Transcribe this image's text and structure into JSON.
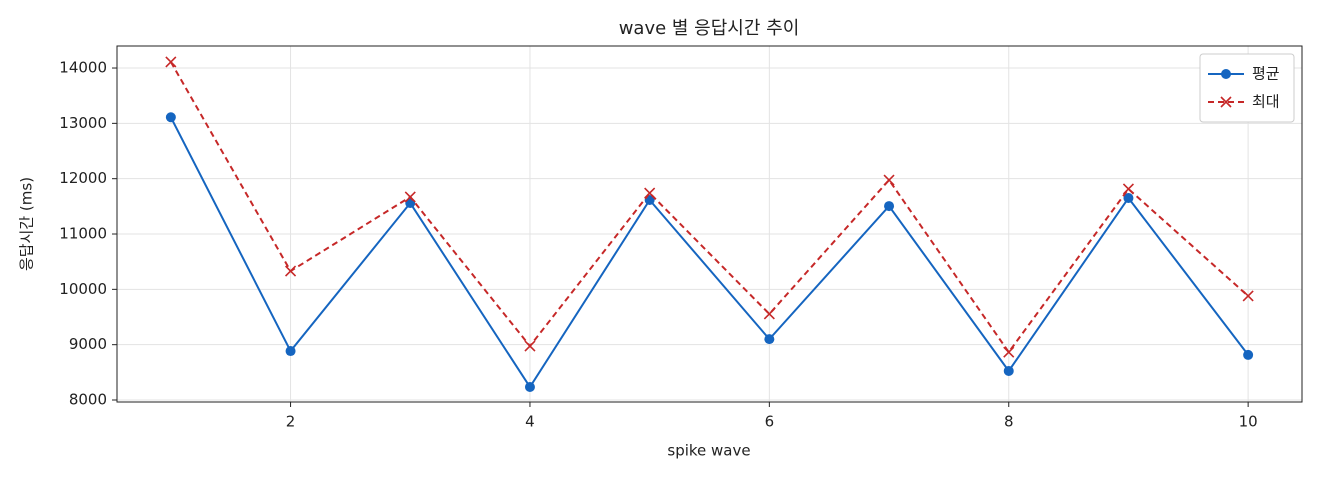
{
  "chart_data": {
    "type": "line",
    "title": "wave 별 응답시간 추이",
    "x_label": "spike wave",
    "y_label": "응답시간 (ms)",
    "x": [
      1,
      2,
      3,
      4,
      5,
      6,
      7,
      8,
      9,
      10
    ],
    "series": [
      {
        "name": "평균",
        "color": "#1565c0",
        "marker": "circle",
        "dash": false,
        "values": [
          13110,
          8885,
          11560,
          8235,
          11615,
          9100,
          11505,
          8525,
          11650,
          8815
        ]
      },
      {
        "name": "최대",
        "color": "#c62828",
        "marker": "x",
        "dash": true,
        "values": [
          14110,
          10330,
          11670,
          8975,
          11740,
          9555,
          11975,
          8865,
          11815,
          9880
        ]
      }
    ],
    "xlim": [
      0.55,
      10.45
    ],
    "ylim": [
      7964,
      14398
    ],
    "xticks": [
      2,
      4,
      6,
      8,
      10
    ],
    "yticks": [
      8000,
      9000,
      10000,
      11000,
      12000,
      13000,
      14000
    ],
    "grid": true,
    "legend": "upper right"
  }
}
